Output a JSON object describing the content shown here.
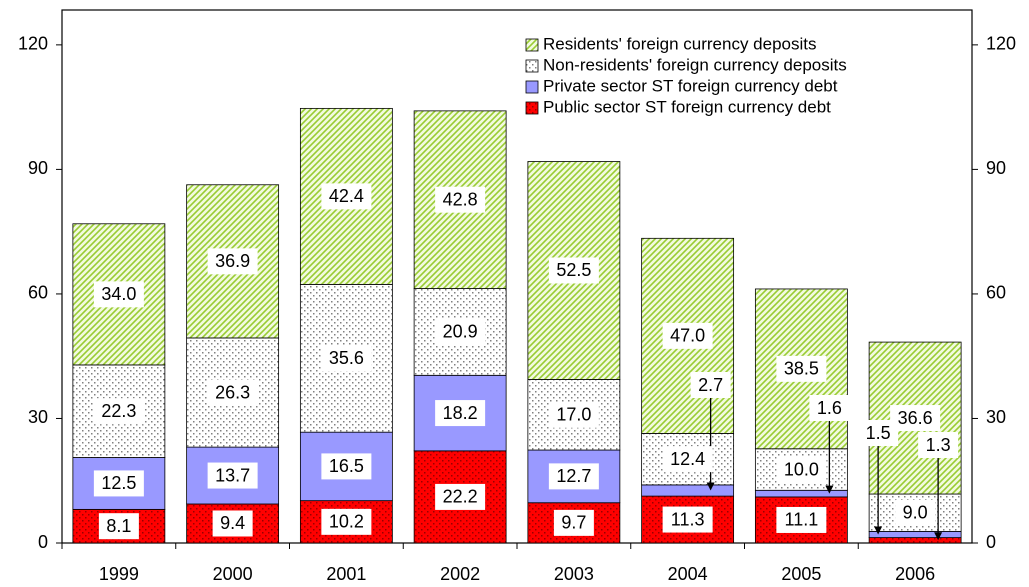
{
  "chart_data": {
    "type": "stacked-bar",
    "categories": [
      "1999",
      "2000",
      "2001",
      "2002",
      "2003",
      "2004",
      "2005",
      "2006"
    ],
    "series": [
      {
        "name": "Public sector ST foreign currency debt",
        "color": "#ff0000",
        "pattern": "dots",
        "values": [
          8.1,
          9.4,
          10.2,
          22.2,
          9.7,
          11.3,
          11.1,
          1.3
        ],
        "value_labels": [
          "8.1",
          "9.4",
          "10.2",
          "22.2",
          "9.7",
          "11.3",
          "11.1",
          "1.3"
        ]
      },
      {
        "name": "Private sector ST foreign currency debt",
        "color": "#9999ff",
        "pattern": "solid",
        "values": [
          12.5,
          13.7,
          16.5,
          18.2,
          12.7,
          2.7,
          1.6,
          1.5
        ],
        "value_labels": [
          "12.5",
          "13.7",
          "16.5",
          "18.2",
          "12.7",
          "2.7",
          "1.6",
          "1.5"
        ]
      },
      {
        "name": "Non-residents' foreign currency deposits",
        "color": "#808080",
        "pattern": "dots",
        "values": [
          22.3,
          26.3,
          35.6,
          20.9,
          17.0,
          12.4,
          10.0,
          9.0
        ],
        "value_labels": [
          "22.3",
          "26.3",
          "35.6",
          "20.9",
          "17.0",
          "12.4",
          "10.0",
          "9.0"
        ]
      },
      {
        "name": "Residents' foreign currency deposits",
        "color": "#99cc33",
        "pattern": "hatch",
        "values": [
          34.0,
          36.9,
          42.4,
          42.8,
          52.5,
          47.0,
          38.5,
          36.6
        ],
        "value_labels": [
          "34.0",
          "36.9",
          "42.4",
          "42.8",
          "52.5",
          "47.0",
          "38.5",
          "36.6"
        ]
      }
    ],
    "ylim": [
      0,
      128.4
    ],
    "yticks": [
      0,
      30,
      60,
      90,
      120
    ],
    "y2lim": [
      0,
      128.4
    ],
    "y2ticks": [
      0,
      30,
      60,
      90,
      120
    ],
    "legend": "top-right"
  }
}
